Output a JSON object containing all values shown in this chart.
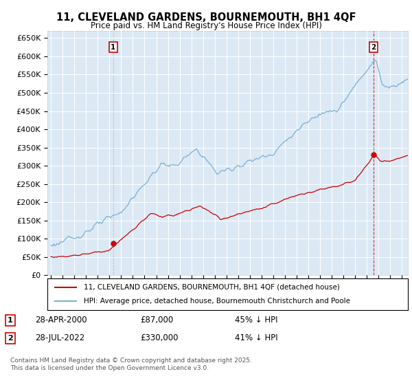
{
  "title": "11, CLEVELAND GARDENS, BOURNEMOUTH, BH1 4QF",
  "subtitle": "Price paid vs. HM Land Registry's House Price Index (HPI)",
  "background_color": "#ffffff",
  "plot_bg_color": "#dce9f5",
  "red_color": "#cc0000",
  "blue_color": "#7bafd4",
  "sale1_date": "28-APR-2000",
  "sale1_price": 87000,
  "sale1_label": "45% ↓ HPI",
  "sale1_year": 2000.32,
  "sale2_date": "28-JUL-2022",
  "sale2_price": 330000,
  "sale2_label": "41% ↓ HPI",
  "sale2_year": 2022.57,
  "legend_line1": "11, CLEVELAND GARDENS, BOURNEMOUTH, BH1 4QF (detached house)",
  "legend_line2": "HPI: Average price, detached house, Bournemouth Christchurch and Poole",
  "footnote": "Contains HM Land Registry data © Crown copyright and database right 2025.\nThis data is licensed under the Open Government Licence v3.0.",
  "ylim": [
    0,
    670000
  ],
  "yticks": [
    0,
    50000,
    100000,
    150000,
    200000,
    250000,
    300000,
    350000,
    400000,
    450000,
    500000,
    550000,
    600000,
    650000
  ],
  "xlim_start": 1994.7,
  "xlim_end": 2025.5
}
